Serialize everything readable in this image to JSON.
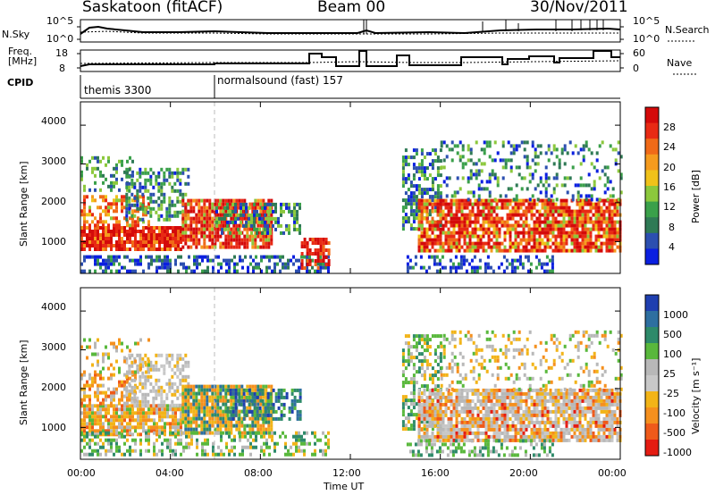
{
  "header": {
    "station": "Saskatoon (fitACF)",
    "beam": "Beam 00",
    "date": "30/Nov/2011"
  },
  "nsky_panel": {
    "left_label": "N.Sky",
    "right_label": "N.Search",
    "left_ticks": [
      "10^5",
      "10^0"
    ],
    "right_ticks": [
      "10^5",
      "10^0"
    ]
  },
  "freq_panel": {
    "left_label_line1": "Freq.",
    "left_label_line2": "[MHz]",
    "right_label": "Nave",
    "left_ticks": [
      "18",
      "8"
    ],
    "right_ticks": [
      "60",
      "0"
    ]
  },
  "cpid": {
    "label": "CPID",
    "programs": [
      {
        "name": "themis 3300",
        "start_hour": 0
      },
      {
        "name": "normalsound (fast) 157",
        "start_hour": 6
      }
    ]
  },
  "chart_data": [
    {
      "type": "heatmap",
      "panel": "power",
      "ylabel": "Slant Range [km]",
      "yticks": [
        "1000",
        "2000",
        "3000",
        "4000"
      ],
      "ylim": [
        180,
        4600
      ],
      "xlim": [
        0,
        24
      ],
      "xticks": [
        "00:00",
        "04:00",
        "08:00",
        "12:00",
        "16:00",
        "20:00",
        "00:00"
      ],
      "colorbar": {
        "label": "Power [dB]",
        "ticks": [
          "4",
          "8",
          "12",
          "16",
          "20",
          "24",
          "28"
        ],
        "colors": [
          "#0b1fe0",
          "#2c4fb0",
          "#2f7a55",
          "#3aa04a",
          "#8cc83c",
          "#f0c21a",
          "#f59b1e",
          "#f06a18",
          "#e82a14",
          "#d40a0a"
        ]
      }
    },
    {
      "type": "heatmap",
      "panel": "velocity",
      "ylabel": "Slant Range [km]",
      "xlabel": "Time UT",
      "yticks": [
        "1000",
        "2000",
        "3000",
        "4000"
      ],
      "ylim": [
        180,
        4600
      ],
      "xlim": [
        0,
        24
      ],
      "xticks": [
        "00:00",
        "04:00",
        "08:00",
        "12:00",
        "16:00",
        "20:00",
        "00:00"
      ],
      "colorbar": {
        "label": "Velocity [m s⁻¹]",
        "ticks": [
          "1000",
          "500",
          "100",
          "25",
          "-25",
          "-100",
          "-500",
          "-1000"
        ],
        "colors": [
          "#1f3fb0",
          "#2e6fa0",
          "#2e8a6a",
          "#59b83c",
          "#b8b8b8",
          "#c8c8c8",
          "#f2b418",
          "#f5901e",
          "#ef5a1a",
          "#e51c12"
        ]
      }
    }
  ]
}
